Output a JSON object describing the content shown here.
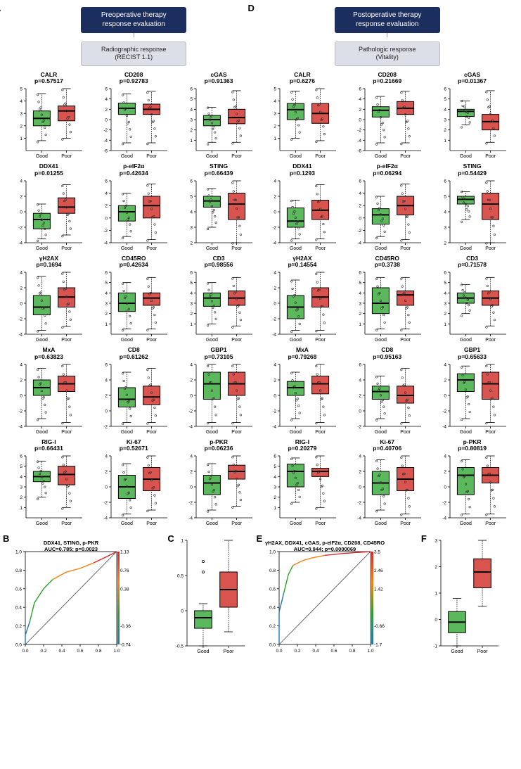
{
  "colors": {
    "good": "#5cb85c",
    "poor": "#d9534f",
    "box_border": "#000000",
    "axis": "#000000",
    "point": "#222222",
    "whisker": "#333333",
    "header_bg": "#1c2e5e",
    "sub_bg": "#dcdfe8"
  },
  "headers": {
    "A": {
      "title_l1": "Preoperative therapy",
      "title_l2": "response evaluation",
      "sub_l1": "Radiographic response",
      "sub_l2": "(RECIST 1.1)"
    },
    "D": {
      "title_l1": "Postoperative therapy",
      "title_l2": "response evaluation",
      "sub_l1": "Pathologic response",
      "sub_l2": "(Vitality)"
    }
  },
  "x_labels": [
    "Good",
    "Poor"
  ],
  "A_plots": [
    {
      "name": "CALR",
      "p": "p=0.57517",
      "ylim": [
        0,
        5
      ],
      "yticks": [
        1,
        2,
        3,
        4,
        5
      ],
      "good": {
        "q1": 2.0,
        "med": 2.6,
        "q3": 3.2,
        "lo": 0.8,
        "hi": 4.6
      },
      "poor": {
        "q1": 2.4,
        "med": 3.2,
        "q3": 3.6,
        "lo": 1.0,
        "hi": 5.0
      }
    },
    {
      "name": "CD208",
      "p": "p=0.92783",
      "ylim": [
        -6,
        6
      ],
      "yticks": [
        -6,
        -4,
        -2,
        0,
        2,
        4,
        6
      ],
      "good": {
        "q1": 1.0,
        "med": 2.2,
        "q3": 3.2,
        "lo": -4.5,
        "hi": 5.0
      },
      "poor": {
        "q1": 1.0,
        "med": 2.0,
        "q3": 3.0,
        "lo": -4.5,
        "hi": 5.5
      }
    },
    {
      "name": "cGAS",
      "p": "p=0.91363",
      "ylim": [
        0,
        6
      ],
      "yticks": [
        1,
        2,
        3,
        4,
        5,
        6
      ],
      "good": {
        "q1": 2.4,
        "med": 3.0,
        "q3": 3.4,
        "lo": 0.8,
        "hi": 4.2
      },
      "poor": {
        "q1": 2.6,
        "med": 3.2,
        "q3": 4.0,
        "lo": 0.8,
        "hi": 5.8
      }
    },
    {
      "name": "DDX41",
      "p": "p=0.01255",
      "ylim": [
        -4,
        4
      ],
      "yticks": [
        -4,
        -2,
        0,
        2,
        4
      ],
      "good": {
        "q1": -2.2,
        "med": -1.0,
        "q3": -0.2,
        "lo": -3.5,
        "hi": 1.0
      },
      "poor": {
        "q1": -0.2,
        "med": 0.6,
        "q3": 1.8,
        "lo": -3.0,
        "hi": 3.5
      }
    },
    {
      "name": "p-eIF2α",
      "p": "p=0.42634",
      "ylim": [
        -4,
        6
      ],
      "yticks": [
        -4,
        -2,
        0,
        2,
        4,
        6
      ],
      "good": {
        "q1": -0.5,
        "med": 1.0,
        "q3": 2.0,
        "lo": -3.0,
        "hi": 4.0
      },
      "poor": {
        "q1": 0.0,
        "med": 2.0,
        "q3": 3.5,
        "lo": -3.5,
        "hi": 5.5
      }
    },
    {
      "name": "STING",
      "p": "p=0.66439",
      "ylim": [
        2,
        6
      ],
      "yticks": [
        2,
        3,
        4,
        5,
        6
      ],
      "good": {
        "q1": 4.3,
        "med": 4.7,
        "q3": 5.0,
        "lo": 3.0,
        "hi": 5.5
      },
      "poor": {
        "q1": 3.5,
        "med": 4.5,
        "q3": 5.2,
        "lo": 2.0,
        "hi": 6.0
      }
    },
    {
      "name": "γH2AX",
      "p": "p=0.1694",
      "ylim": [
        -4,
        4
      ],
      "yticks": [
        -4,
        -2,
        0,
        2,
        4
      ],
      "good": {
        "q1": -1.5,
        "med": -0.5,
        "q3": 1.0,
        "lo": -3.5,
        "hi": 3.5
      },
      "poor": {
        "q1": -0.5,
        "med": 0.8,
        "q3": 2.0,
        "lo": -3.0,
        "hi": 4.0
      }
    },
    {
      "name": "CD45RO",
      "p": "p=0.42634",
      "ylim": [
        0,
        6
      ],
      "yticks": [
        1,
        2,
        3,
        4,
        5,
        6
      ],
      "good": {
        "q1": 2.2,
        "med": 3.0,
        "q3": 4.0,
        "lo": 0.5,
        "hi": 5.0
      },
      "poor": {
        "q1": 2.8,
        "med": 3.5,
        "q3": 4.0,
        "lo": 0.5,
        "hi": 5.5
      }
    },
    {
      "name": "CD3",
      "p": "p=0.98556",
      "ylim": [
        0,
        6
      ],
      "yticks": [
        1,
        2,
        3,
        4,
        5,
        6
      ],
      "good": {
        "q1": 2.7,
        "med": 3.5,
        "q3": 4.0,
        "lo": 1.0,
        "hi": 5.0
      },
      "poor": {
        "q1": 2.8,
        "med": 3.5,
        "q3": 4.2,
        "lo": 0.8,
        "hi": 5.5
      }
    },
    {
      "name": "MxA",
      "p": "p=0.63823",
      "ylim": [
        -4,
        4
      ],
      "yticks": [
        -4,
        -2,
        0,
        2,
        4
      ],
      "good": {
        "q1": 0.0,
        "med": 1.0,
        "q3": 2.0,
        "lo": -3.0,
        "hi": 3.5
      },
      "poor": {
        "q1": 0.5,
        "med": 1.5,
        "q3": 2.5,
        "lo": -3.5,
        "hi": 4.0
      }
    },
    {
      "name": "CD8",
      "p": "p=0.61262",
      "ylim": [
        -2,
        6
      ],
      "yticks": [
        -2,
        0,
        2,
        4,
        6
      ],
      "good": {
        "q1": 0.5,
        "med": 1.5,
        "q3": 3.0,
        "lo": -1.5,
        "hi": 5.0
      },
      "poor": {
        "q1": 0.8,
        "med": 1.8,
        "q3": 3.2,
        "lo": -1.5,
        "hi": 5.5
      }
    },
    {
      "name": "GBP1",
      "p": "p=0.73105",
      "ylim": [
        -4,
        4
      ],
      "yticks": [
        -4,
        -2,
        0,
        2,
        4
      ],
      "good": {
        "q1": -0.5,
        "med": 1.5,
        "q3": 3.0,
        "lo": -3.5,
        "hi": 4.0
      },
      "poor": {
        "q1": 0.0,
        "med": 1.5,
        "q3": 3.0,
        "lo": -3.5,
        "hi": 4.0
      }
    },
    {
      "name": "RIG-I",
      "p": "p=0.66431",
      "ylim": [
        0,
        6
      ],
      "yticks": [
        1,
        2,
        3,
        4,
        5,
        6
      ],
      "good": {
        "q1": 3.5,
        "med": 4.0,
        "q3": 4.5,
        "lo": 2.0,
        "hi": 5.5
      },
      "poor": {
        "q1": 3.2,
        "med": 4.2,
        "q3": 5.0,
        "lo": 1.0,
        "hi": 6.0
      }
    },
    {
      "name": "Ki-67",
      "p": "p=0.52671",
      "ylim": [
        -4,
        4
      ],
      "yticks": [
        -4,
        -2,
        0,
        2,
        4
      ],
      "good": {
        "q1": -1.5,
        "med": 0.0,
        "q3": 1.5,
        "lo": -3.5,
        "hi": 3.0
      },
      "poor": {
        "q1": -0.5,
        "med": 1.0,
        "q3": 2.5,
        "lo": -3.0,
        "hi": 4.0
      }
    },
    {
      "name": "p-PKR",
      "p": "p=0.06236",
      "ylim": [
        -4,
        4
      ],
      "yticks": [
        -4,
        -2,
        0,
        2,
        4
      ],
      "good": {
        "q1": -1.0,
        "med": 0.5,
        "q3": 1.5,
        "lo": -3.0,
        "hi": 3.0
      },
      "poor": {
        "q1": 1.0,
        "med": 2.0,
        "q3": 2.8,
        "lo": -2.5,
        "hi": 4.0
      }
    }
  ],
  "D_plots": [
    {
      "name": "CALR",
      "p": "p=0.6276",
      "ylim": [
        0,
        5
      ],
      "yticks": [
        1,
        2,
        3,
        4,
        5
      ],
      "good": {
        "q1": 2.5,
        "med": 3.3,
        "q3": 3.8,
        "lo": 1.0,
        "hi": 4.8
      },
      "poor": {
        "q1": 2.2,
        "med": 3.0,
        "q3": 3.8,
        "lo": 0.8,
        "hi": 5.0
      }
    },
    {
      "name": "CD208",
      "p": "p=0.21669",
      "ylim": [
        -6,
        6
      ],
      "yticks": [
        -6,
        -4,
        -2,
        0,
        2,
        4,
        6
      ],
      "good": {
        "q1": 0.5,
        "med": 1.8,
        "q3": 2.5,
        "lo": -4.5,
        "hi": 4.5
      },
      "poor": {
        "q1": 1.0,
        "med": 2.2,
        "q3": 3.5,
        "lo": -4.5,
        "hi": 5.5
      }
    },
    {
      "name": "cGAS",
      "p": "p=0.01367",
      "ylim": [
        0,
        6
      ],
      "yticks": [
        1,
        2,
        3,
        4,
        5,
        6
      ],
      "good": {
        "q1": 3.3,
        "med": 3.8,
        "q3": 4.0,
        "lo": 2.5,
        "hi": 4.8
      },
      "poor": {
        "q1": 2.0,
        "med": 2.8,
        "q3": 3.5,
        "lo": 0.8,
        "hi": 5.8
      }
    },
    {
      "name": "DDX41",
      "p": "p=0.1293",
      "ylim": [
        -4,
        4
      ],
      "yticks": [
        -4,
        -2,
        0,
        2,
        4
      ],
      "good": {
        "q1": -2.0,
        "med": -1.2,
        "q3": 0.5,
        "lo": -3.5,
        "hi": 1.5
      },
      "poor": {
        "q1": -1.0,
        "med": 0.2,
        "q3": 1.5,
        "lo": -3.5,
        "hi": 3.5
      }
    },
    {
      "name": "p-eIF2α",
      "p": "p=0.06294",
      "ylim": [
        -4,
        6
      ],
      "yticks": [
        -4,
        -2,
        0,
        2,
        4,
        6
      ],
      "good": {
        "q1": -1.0,
        "med": 0.5,
        "q3": 1.5,
        "lo": -3.0,
        "hi": 3.5
      },
      "poor": {
        "q1": 0.5,
        "med": 2.0,
        "q3": 3.5,
        "lo": -3.5,
        "hi": 5.5
      }
    },
    {
      "name": "STING",
      "p": "p=0.54429",
      "ylim": [
        2,
        6
      ],
      "yticks": [
        2,
        3,
        4,
        5,
        6
      ],
      "good": {
        "q1": 4.5,
        "med": 4.8,
        "q3": 5.0,
        "lo": 3.5,
        "hi": 5.3
      },
      "poor": {
        "q1": 3.5,
        "med": 4.5,
        "q3": 5.2,
        "lo": 2.0,
        "hi": 6.0
      }
    },
    {
      "name": "γH2AX",
      "p": "p=0.14554",
      "ylim": [
        -4,
        4
      ],
      "yticks": [
        -4,
        -2,
        0,
        2,
        4
      ],
      "good": {
        "q1": -2.0,
        "med": -0.5,
        "q3": 1.0,
        "lo": -3.5,
        "hi": 3.0
      },
      "poor": {
        "q1": -0.5,
        "med": 0.8,
        "q3": 2.0,
        "lo": -3.5,
        "hi": 4.0
      }
    },
    {
      "name": "CD45RO",
      "p": "p=0.3738",
      "ylim": [
        0,
        6
      ],
      "yticks": [
        1,
        2,
        3,
        4,
        5,
        6
      ],
      "good": {
        "q1": 2.0,
        "med": 3.0,
        "q3": 4.5,
        "lo": 0.5,
        "hi": 5.5
      },
      "poor": {
        "q1": 2.8,
        "med": 3.8,
        "q3": 4.2,
        "lo": 0.5,
        "hi": 5.5
      }
    },
    {
      "name": "CD3",
      "p": "p=0.71578",
      "ylim": [
        0,
        6
      ],
      "yticks": [
        1,
        2,
        3,
        4,
        5,
        6
      ],
      "good": {
        "q1": 3.0,
        "med": 3.5,
        "q3": 4.0,
        "lo": 2.0,
        "hi": 4.8
      },
      "poor": {
        "q1": 2.8,
        "med": 3.5,
        "q3": 4.2,
        "lo": 0.8,
        "hi": 5.5
      }
    },
    {
      "name": "MxA",
      "p": "p=0.79268",
      "ylim": [
        -4,
        4
      ],
      "yticks": [
        -4,
        -2,
        0,
        2,
        4
      ],
      "good": {
        "q1": 0.0,
        "med": 1.0,
        "q3": 1.8,
        "lo": -3.0,
        "hi": 3.0
      },
      "poor": {
        "q1": 0.2,
        "med": 1.5,
        "q3": 2.5,
        "lo": -3.5,
        "hi": 4.0
      }
    },
    {
      "name": "CD8",
      "p": "p=0.95163",
      "ylim": [
        -2,
        6
      ],
      "yticks": [
        -2,
        0,
        2,
        4,
        6
      ],
      "good": {
        "q1": 1.5,
        "med": 2.5,
        "q3": 3.2,
        "lo": -1.0,
        "hi": 4.5
      },
      "poor": {
        "q1": 1.0,
        "med": 2.0,
        "q3": 3.2,
        "lo": -1.5,
        "hi": 5.5
      }
    },
    {
      "name": "GBP1",
      "p": "p=0.65633",
      "ylim": [
        -4,
        4
      ],
      "yticks": [
        -4,
        -2,
        0,
        2,
        4
      ],
      "good": {
        "q1": 0.5,
        "med": 2.0,
        "q3": 2.8,
        "lo": -3.0,
        "hi": 3.8
      },
      "poor": {
        "q1": -0.5,
        "med": 1.5,
        "q3": 3.0,
        "lo": -3.5,
        "hi": 4.0
      }
    },
    {
      "name": "RIG-I",
      "p": "p=0.20279",
      "ylim": [
        0,
        6
      ],
      "yticks": [
        1,
        2,
        3,
        4,
        5,
        6
      ],
      "good": {
        "q1": 3.0,
        "med": 4.5,
        "q3": 5.2,
        "lo": 1.5,
        "hi": 5.8
      },
      "poor": {
        "q1": 4.0,
        "med": 4.5,
        "q3": 4.8,
        "lo": 1.0,
        "hi": 6.0
      }
    },
    {
      "name": "Ki-67",
      "p": "p=0.40706",
      "ylim": [
        -4,
        4
      ],
      "yticks": [
        -4,
        -2,
        0,
        2,
        4
      ],
      "good": {
        "q1": -1.0,
        "med": 0.5,
        "q3": 2.0,
        "lo": -3.0,
        "hi": 3.5
      },
      "poor": {
        "q1": -0.5,
        "med": 1.0,
        "q3": 2.5,
        "lo": -3.5,
        "hi": 4.0
      }
    },
    {
      "name": "p-PKR",
      "p": "p=0.80819",
      "ylim": [
        -4,
        4
      ],
      "yticks": [
        -4,
        -2,
        0,
        2,
        4
      ],
      "good": {
        "q1": -1.0,
        "med": 1.5,
        "q3": 2.5,
        "lo": -3.5,
        "hi": 3.5
      },
      "poor": {
        "q1": 0.5,
        "med": 1.5,
        "q3": 2.5,
        "lo": -3.5,
        "hi": 4.0
      }
    }
  ],
  "B": {
    "title": "DDX41, STING, p-PKR",
    "sub": "AUC=0.785; p=0.0023",
    "xticks": [
      0.0,
      0.2,
      0.4,
      0.6,
      0.8,
      1.0
    ],
    "right_ticks": [
      "1.13",
      "0.76",
      "0.38",
      "",
      "-0.36",
      "-0.74"
    ],
    "roc": [
      [
        0,
        0
      ],
      [
        0,
        0.1
      ],
      [
        0.05,
        0.25
      ],
      [
        0.1,
        0.45
      ],
      [
        0.2,
        0.6
      ],
      [
        0.3,
        0.7
      ],
      [
        0.45,
        0.78
      ],
      [
        0.6,
        0.82
      ],
      [
        0.75,
        0.88
      ],
      [
        0.9,
        0.95
      ],
      [
        1,
        1
      ]
    ]
  },
  "C": {
    "ylim": [
      -0.5,
      1.0
    ],
    "yticks": [
      -0.5,
      0.0,
      0.5,
      1.0
    ],
    "good": {
      "q1": -0.25,
      "med": -0.1,
      "q3": 0.0,
      "lo": -0.5,
      "hi": 0.1
    },
    "poor": {
      "q1": 0.05,
      "med": 0.3,
      "q3": 0.55,
      "lo": -0.3,
      "hi": 1.0
    },
    "outliers_good": [
      0.55,
      0.7
    ]
  },
  "E": {
    "title": "γH2AX, DDX41, cGAS, p-eIF2α, CD208, CD45RO",
    "sub": "AUC=0.944; p=0.0000069",
    "xticks": [
      0.0,
      0.2,
      0.4,
      0.6,
      0.8,
      1.0
    ],
    "right_ticks": [
      "3.5",
      "2.46",
      "1.42",
      "",
      "-0.66",
      "-1.7"
    ],
    "roc": [
      [
        0,
        0
      ],
      [
        0,
        0.35
      ],
      [
        0.05,
        0.55
      ],
      [
        0.1,
        0.75
      ],
      [
        0.15,
        0.85
      ],
      [
        0.25,
        0.9
      ],
      [
        0.35,
        0.93
      ],
      [
        0.5,
        0.96
      ],
      [
        0.7,
        0.98
      ],
      [
        1,
        1
      ]
    ]
  },
  "F": {
    "ylim": [
      -1,
      3
    ],
    "yticks": [
      -1,
      0,
      1,
      2,
      3
    ],
    "good": {
      "q1": -0.5,
      "med": -0.1,
      "q3": 0.3,
      "lo": -1.0,
      "hi": 0.8
    },
    "poor": {
      "q1": 1.2,
      "med": 1.8,
      "q3": 2.3,
      "lo": 0.5,
      "hi": 3.0
    }
  }
}
